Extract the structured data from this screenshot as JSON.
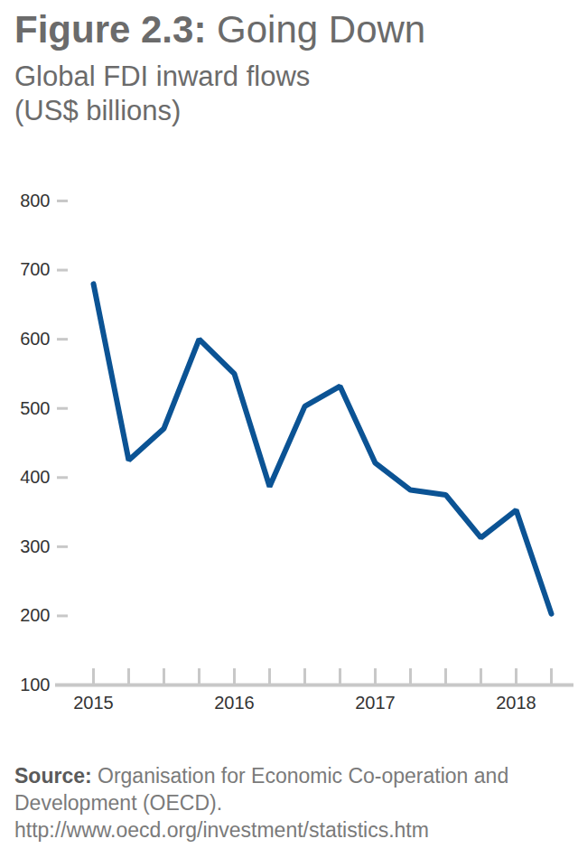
{
  "chart_data": {
    "type": "line",
    "title": "Figure 2.3: Going Down",
    "subtitle": "Global FDI inward flows (US$ billions)",
    "caption": "Source: Organisation for Economic Co-operation and Development (OECD). http://www.oecd.org/investment/statistics.htm",
    "categories": [
      "2015",
      null,
      null,
      null,
      "2016",
      null,
      null,
      null,
      "2017",
      null,
      null,
      null,
      "2018",
      null
    ],
    "values": [
      680,
      425,
      471,
      600,
      550,
      387,
      503,
      532,
      421,
      382,
      375,
      313,
      353,
      203
    ],
    "color": "#0b5394",
    "ylim": [
      100,
      800
    ],
    "yticks": [
      100,
      200,
      300,
      400,
      500,
      600,
      700,
      800
    ],
    "grid": false
  }
}
